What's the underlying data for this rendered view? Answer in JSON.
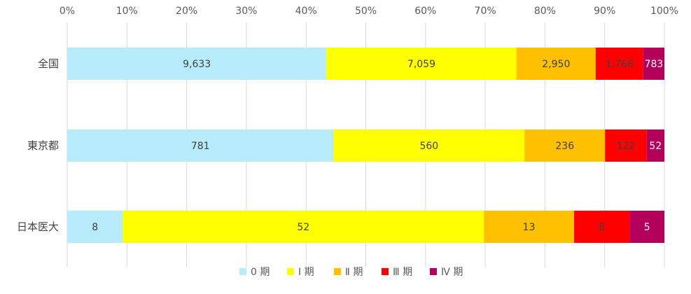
{
  "chart_data": {
    "type": "bar",
    "orientation": "horizontal",
    "stacked": "percent",
    "title": "",
    "xlabel": "",
    "ylabel": "",
    "xlim": [
      0,
      100
    ],
    "x_ticks": [
      "0%",
      "10%",
      "20%",
      "30%",
      "40%",
      "50%",
      "60%",
      "70%",
      "80%",
      "90%",
      "100%"
    ],
    "grid": true,
    "legend_position": "bottom",
    "categories": [
      "全国",
      "東京都",
      "日本医大"
    ],
    "series": [
      {
        "name": "0 期",
        "color": "#b7ebfa",
        "values": [
          9633,
          781,
          8
        ],
        "labels": [
          "9,633",
          "781",
          "8"
        ],
        "label_color": "#404040"
      },
      {
        "name": "Ⅰ 期",
        "color": "#ffff00",
        "values": [
          7059,
          560,
          52
        ],
        "labels": [
          "7,059",
          "560",
          "52"
        ],
        "label_color": "#404040"
      },
      {
        "name": "Ⅱ 期",
        "color": "#ffc000",
        "values": [
          2950,
          236,
          13
        ],
        "labels": [
          "2,950",
          "236",
          "13"
        ],
        "label_color": "#404040"
      },
      {
        "name": "Ⅲ 期",
        "color": "#ff0000",
        "values": [
          1766,
          122,
          8
        ],
        "labels": [
          "1,766",
          "122",
          "8"
        ],
        "label_color": "#404040"
      },
      {
        "name": "Ⅳ 期",
        "color": "#b4005a",
        "values": [
          783,
          52,
          5
        ],
        "labels": [
          "783",
          "52",
          "5"
        ],
        "label_color": "#ffffff"
      }
    ]
  }
}
